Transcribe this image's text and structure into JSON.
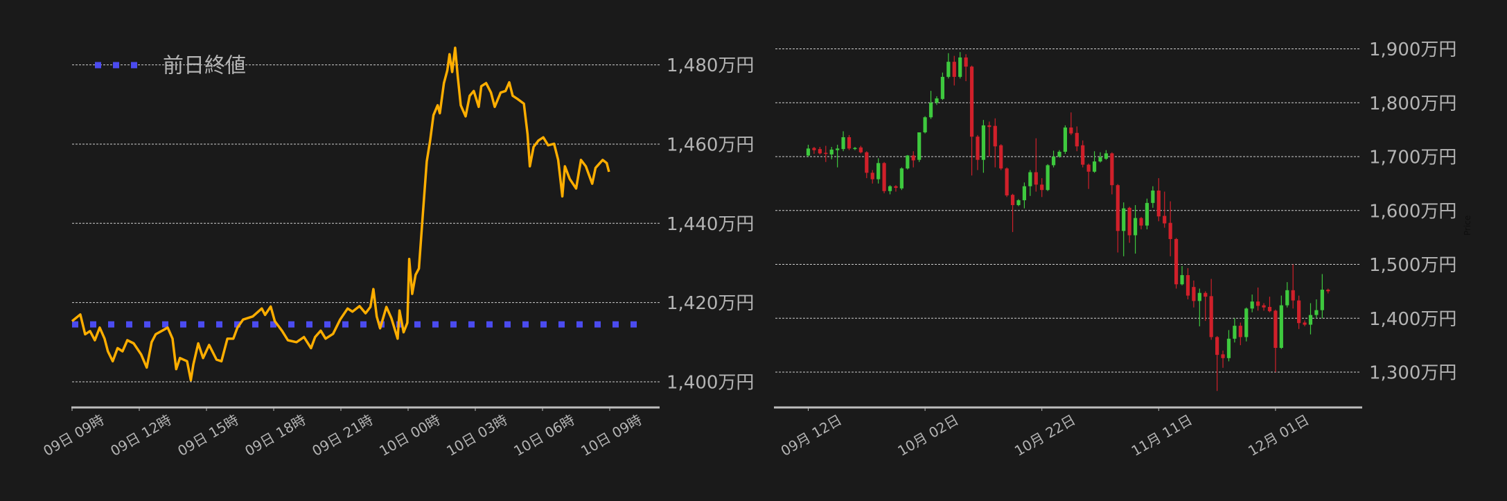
{
  "colors": {
    "background": "#1a1a1a",
    "line": "#ffae00",
    "prev_close": "#4b4bf0",
    "up": "#3ec93e",
    "down": "#d0202a",
    "grid": "#cfcfcf",
    "axis": "#bdbdbd",
    "text": "#b4b4b4"
  },
  "chart_data": [
    {
      "type": "line",
      "legend": {
        "label": "前日終値",
        "placement": "top-left"
      },
      "prev_close": 1414.5,
      "y_unit": "万円",
      "ylim": [
        1393.5,
        1486
      ],
      "y_ticks": [
        1400,
        1420,
        1440,
        1460,
        1480
      ],
      "y_tick_labels": [
        "1,400万円",
        "1,420万円",
        "1,440万円",
        "1,460万円",
        "1,480万円"
      ],
      "x_ticks": [
        "09 09:00",
        "09 12:00",
        "09 15:00",
        "09 18:00",
        "09 21:00",
        "10 00:00",
        "10 03:00",
        "10 06:00",
        "10 09:00"
      ],
      "x_tick_labels": [
        "09日 09時",
        "09日 12時",
        "09日 15時",
        "09日 18時",
        "09日 21時",
        "10日 00時",
        "10日 03時",
        "10日 06時",
        "10日 09時"
      ],
      "grid": true,
      "points": [
        [
          "09 09:00",
          1415.3
        ],
        [
          "09 09:22",
          1417
        ],
        [
          "09 09:35",
          1412
        ],
        [
          "09 09:48",
          1412.8
        ],
        [
          "09 10:01",
          1410.5
        ],
        [
          "09 10:14",
          1413.7
        ],
        [
          "09 10:27",
          1410.9
        ],
        [
          "09 10:36",
          1407.7
        ],
        [
          "09 10:49",
          1405.2
        ],
        [
          "09 11:02",
          1408.5
        ],
        [
          "09 11:15",
          1407.7
        ],
        [
          "09 11:28",
          1410.5
        ],
        [
          "09 11:45",
          1409.7
        ],
        [
          "09 12:05",
          1406.9
        ],
        [
          "09 12:20",
          1403.6
        ],
        [
          "09 12:33",
          1410
        ],
        [
          "09 12:44",
          1412
        ],
        [
          "09 13:03",
          1413
        ],
        [
          "09 13:16",
          1413.7
        ],
        [
          "09 13:29",
          1410.9
        ],
        [
          "09 13:39",
          1403.2
        ],
        [
          "09 13:49",
          1406
        ],
        [
          "09 14:08",
          1405.2
        ],
        [
          "09 14:18",
          1400.4
        ],
        [
          "09 14:25",
          1404.4
        ],
        [
          "09 14:38",
          1409.7
        ],
        [
          "09 14:51",
          1406
        ],
        [
          "09 15:07",
          1409.3
        ],
        [
          "09 15:27",
          1405.6
        ],
        [
          "09 15:40",
          1405.2
        ],
        [
          "09 15:56",
          1410.9
        ],
        [
          "09 16:12",
          1410.9
        ],
        [
          "09 16:23",
          1413.7
        ],
        [
          "09 16:38",
          1415.7
        ],
        [
          "09 17:04",
          1416.5
        ],
        [
          "09 17:28",
          1418.5
        ],
        [
          "09 17:37",
          1416.9
        ],
        [
          "09 17:52",
          1419
        ],
        [
          "09 18:03",
          1415.3
        ],
        [
          "09 18:22",
          1412.9
        ],
        [
          "09 18:38",
          1410.5
        ],
        [
          "09 19:01",
          1410
        ],
        [
          "09 19:21",
          1411.3
        ],
        [
          "09 19:40",
          1408.5
        ],
        [
          "09 19:51",
          1411.3
        ],
        [
          "09 20:06",
          1412.9
        ],
        [
          "09 20:19",
          1410.9
        ],
        [
          "09 20:39",
          1412.1
        ],
        [
          "09 20:58",
          1415.7
        ],
        [
          "09 21:18",
          1418.5
        ],
        [
          "09 21:31",
          1417.7
        ],
        [
          "09 21:50",
          1419.1
        ],
        [
          "09 22:06",
          1417.3
        ],
        [
          "09 22:19",
          1418.9
        ],
        [
          "09 22:27",
          1423.4
        ],
        [
          "09 22:36",
          1416.5
        ],
        [
          "09 22:45",
          1413.5
        ],
        [
          "09 23:02",
          1418.9
        ],
        [
          "09 23:15",
          1416.1
        ],
        [
          "09 23:32",
          1410.9
        ],
        [
          "09 23:37",
          1418
        ],
        [
          "09 23:48",
          1412.5
        ],
        [
          "09 23:58",
          1414.9
        ],
        [
          "10 00:03",
          1431
        ],
        [
          "10 00:11",
          1422.2
        ],
        [
          "10 00:20",
          1427
        ],
        [
          "10 00:29",
          1428.6
        ],
        [
          "10 00:40",
          1443.1
        ],
        [
          "10 00:50",
          1455.6
        ],
        [
          "10 00:59",
          1460.9
        ],
        [
          "10 01:08",
          1467.3
        ],
        [
          "10 01:19",
          1469.8
        ],
        [
          "10 01:25",
          1467.8
        ],
        [
          "10 01:36",
          1475.4
        ],
        [
          "10 01:45",
          1478.6
        ],
        [
          "10 01:51",
          1482.7
        ],
        [
          "10 01:58",
          1478.2
        ],
        [
          "10 02:06",
          1484.3
        ],
        [
          "10 02:13",
          1477
        ],
        [
          "10 02:21",
          1469.8
        ],
        [
          "10 02:34",
          1467
        ],
        [
          "10 02:45",
          1472.2
        ],
        [
          "10 02:56",
          1473.4
        ],
        [
          "10 03:09",
          1469.4
        ],
        [
          "10 03:16",
          1474.6
        ],
        [
          "10 03:29",
          1475.4
        ],
        [
          "10 03:42",
          1473
        ],
        [
          "10 03:52",
          1469.4
        ],
        [
          "10 04:08",
          1473
        ],
        [
          "10 04:21",
          1473.4
        ],
        [
          "10 04:31",
          1475.6
        ],
        [
          "10 04:40",
          1472.2
        ],
        [
          "10 04:53",
          1471.4
        ],
        [
          "10 05:10",
          1470.2
        ],
        [
          "10 05:20",
          1462.5
        ],
        [
          "10 05:26",
          1454.4
        ],
        [
          "10 05:36",
          1459.3
        ],
        [
          "10 05:49",
          1460.9
        ],
        [
          "10 06:02",
          1461.7
        ],
        [
          "10 06:15",
          1459.7
        ],
        [
          "10 06:31",
          1460.1
        ],
        [
          "10 06:42",
          1456
        ],
        [
          "10 06:53",
          1446.8
        ],
        [
          "10 07:00",
          1454.4
        ],
        [
          "10 07:13",
          1451.2
        ],
        [
          "10 07:30",
          1448.8
        ],
        [
          "10 07:43",
          1456
        ],
        [
          "10 07:56",
          1454.4
        ],
        [
          "10 08:13",
          1450
        ],
        [
          "10 08:22",
          1454
        ],
        [
          "10 08:41",
          1456
        ],
        [
          "10 08:52",
          1455.2
        ],
        [
          "10 08:58",
          1453
        ]
      ]
    },
    {
      "type": "candlestick",
      "y_unit": "万円",
      "ylabel": "Price",
      "ylim": [
        1248,
        1930
      ],
      "y_ticks": [
        1300,
        1400,
        1500,
        1600,
        1700,
        1800,
        1900
      ],
      "y_tick_labels": [
        "1,300万円",
        "1,400万円",
        "1,500万円",
        "1,600万円",
        "1,700万円",
        "1,800万円",
        "1,900万円"
      ],
      "x_ticks": [
        "09-12",
        "10-02",
        "10-22",
        "11-11",
        "12-01"
      ],
      "x_tick_labels": [
        "09月 12日",
        "10月 02日",
        "10月 22日",
        "11月 11日",
        "12月 01日"
      ],
      "grid": true,
      "candles_columns": [
        "date",
        "open",
        "high",
        "low",
        "close"
      ],
      "candles": [
        [
          "09-12",
          1702,
          1722,
          1700,
          1715
        ],
        [
          "09-13",
          1716,
          1718,
          1705,
          1712
        ],
        [
          "09-14",
          1714,
          1718,
          1704,
          1706
        ],
        [
          "09-15",
          1707,
          1720,
          1690,
          1705
        ],
        [
          "09-16",
          1704,
          1718,
          1695,
          1713
        ],
        [
          "09-17",
          1712,
          1722,
          1680,
          1715
        ],
        [
          "09-18",
          1714,
          1747,
          1710,
          1736
        ],
        [
          "09-19",
          1736,
          1740,
          1712,
          1715
        ],
        [
          "09-20",
          1715,
          1718,
          1712,
          1716
        ],
        [
          "09-21",
          1717,
          1720,
          1706,
          1708
        ],
        [
          "09-22",
          1708,
          1710,
          1660,
          1670
        ],
        [
          "09-23",
          1670,
          1675,
          1650,
          1658
        ],
        [
          "09-24",
          1658,
          1697,
          1650,
          1688
        ],
        [
          "09-25",
          1688,
          1690,
          1632,
          1636
        ],
        [
          "09-26",
          1636,
          1647,
          1630,
          1645
        ],
        [
          "09-27",
          1645,
          1647,
          1635,
          1642
        ],
        [
          "09-28",
          1641,
          1680,
          1638,
          1678
        ],
        [
          "09-29",
          1678,
          1703,
          1676,
          1702
        ],
        [
          "09-30",
          1702,
          1710,
          1680,
          1693
        ],
        [
          "10-01",
          1694,
          1745,
          1690,
          1745
        ],
        [
          "10-02",
          1745,
          1775,
          1743,
          1773
        ],
        [
          "10-03",
          1773,
          1822,
          1770,
          1800
        ],
        [
          "10-04",
          1800,
          1812,
          1796,
          1808
        ],
        [
          "10-05",
          1807,
          1856,
          1805,
          1848
        ],
        [
          "10-06",
          1848,
          1892,
          1845,
          1876
        ],
        [
          "10-07",
          1876,
          1887,
          1832,
          1848
        ],
        [
          "10-08",
          1848,
          1894,
          1845,
          1884
        ],
        [
          "10-09",
          1884,
          1890,
          1840,
          1867
        ],
        [
          "10-10",
          1867,
          1869,
          1665,
          1737
        ],
        [
          "10-11",
          1737,
          1740,
          1675,
          1694
        ],
        [
          "10-12",
          1694,
          1768,
          1670,
          1758
        ],
        [
          "10-13",
          1758,
          1765,
          1700,
          1755
        ],
        [
          "10-14",
          1757,
          1771,
          1680,
          1719
        ],
        [
          "10-15",
          1721,
          1723,
          1675,
          1678
        ],
        [
          "10-16",
          1678,
          1680,
          1625,
          1628
        ],
        [
          "10-17",
          1629,
          1631,
          1560,
          1610
        ],
        [
          "10-18",
          1610,
          1621,
          1608,
          1619
        ],
        [
          "10-19",
          1619,
          1652,
          1604,
          1645
        ],
        [
          "10-20",
          1645,
          1675,
          1627,
          1671
        ],
        [
          "10-21",
          1671,
          1734,
          1635,
          1648
        ],
        [
          "10-22",
          1648,
          1660,
          1625,
          1638
        ],
        [
          "10-23",
          1638,
          1686,
          1636,
          1684
        ],
        [
          "10-24",
          1684,
          1711,
          1680,
          1700
        ],
        [
          "10-25",
          1700,
          1712,
          1698,
          1709
        ],
        [
          "10-26",
          1709,
          1758,
          1705,
          1754
        ],
        [
          "10-27",
          1754,
          1782,
          1740,
          1743
        ],
        [
          "10-28",
          1744,
          1756,
          1710,
          1719
        ],
        [
          "10-29",
          1721,
          1730,
          1680,
          1685
        ],
        [
          "10-30",
          1685,
          1687,
          1640,
          1672
        ],
        [
          "10-31",
          1672,
          1710,
          1670,
          1691
        ],
        [
          "11-01",
          1691,
          1708,
          1689,
          1699
        ],
        [
          "11-02",
          1696,
          1712,
          1694,
          1706
        ],
        [
          "11-03",
          1706,
          1708,
          1630,
          1647
        ],
        [
          "11-04",
          1647,
          1649,
          1522,
          1562
        ],
        [
          "11-05",
          1562,
          1615,
          1515,
          1604
        ],
        [
          "11-06",
          1605,
          1607,
          1540,
          1554
        ],
        [
          "11-07",
          1554,
          1610,
          1520,
          1586
        ],
        [
          "11-08",
          1586,
          1588,
          1565,
          1572
        ],
        [
          "11-09",
          1572,
          1622,
          1565,
          1614
        ],
        [
          "11-10",
          1614,
          1645,
          1605,
          1637
        ],
        [
          "11-11",
          1637,
          1660,
          1580,
          1589
        ],
        [
          "11-12",
          1590,
          1635,
          1568,
          1576
        ],
        [
          "11-13",
          1577,
          1617,
          1515,
          1547
        ],
        [
          "11-14",
          1547,
          1549,
          1455,
          1463
        ],
        [
          "11-15",
          1463,
          1497,
          1461,
          1480
        ],
        [
          "11-16",
          1480,
          1493,
          1435,
          1442
        ],
        [
          "11-17",
          1458,
          1470,
          1420,
          1432
        ],
        [
          "11-18",
          1432,
          1455,
          1385,
          1447
        ],
        [
          "11-19",
          1447,
          1450,
          1395,
          1440
        ],
        [
          "11-20",
          1441,
          1473,
          1360,
          1365
        ],
        [
          "11-21",
          1365,
          1367,
          1265,
          1332
        ],
        [
          "11-22",
          1333,
          1340,
          1308,
          1326
        ],
        [
          "11-23",
          1326,
          1378,
          1320,
          1362
        ],
        [
          "11-24",
          1362,
          1400,
          1355,
          1386
        ],
        [
          "11-25",
          1386,
          1392,
          1350,
          1365
        ],
        [
          "11-26",
          1365,
          1420,
          1357,
          1418
        ],
        [
          "11-27",
          1418,
          1444,
          1411,
          1431
        ],
        [
          "11-28",
          1431,
          1457,
          1414,
          1423
        ],
        [
          "11-29",
          1424,
          1428,
          1414,
          1420
        ],
        [
          "11-30",
          1421,
          1440,
          1411,
          1413
        ],
        [
          "12-01",
          1414,
          1416,
          1300,
          1345
        ],
        [
          "12-02",
          1345,
          1442,
          1343,
          1424
        ],
        [
          "12-03",
          1424,
          1467,
          1420,
          1452
        ],
        [
          "12-04",
          1452,
          1500,
          1418,
          1433
        ],
        [
          "12-05",
          1433,
          1442,
          1380,
          1391
        ],
        [
          "12-06",
          1392,
          1396,
          1385,
          1388
        ],
        [
          "12-07",
          1388,
          1428,
          1370,
          1406
        ],
        [
          "12-08",
          1406,
          1435,
          1400,
          1415
        ],
        [
          "12-09",
          1415,
          1482,
          1400,
          1453
        ],
        [
          "12-10",
          1453,
          1455,
          1446,
          1450
        ]
      ]
    }
  ]
}
